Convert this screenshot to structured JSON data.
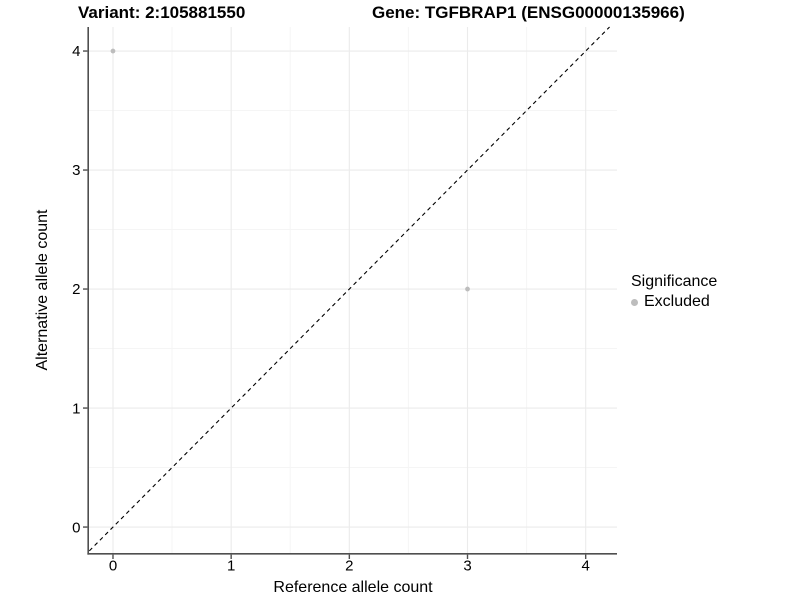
{
  "chart_data": {
    "type": "scatter",
    "title_left": "Variant: 2:105881550",
    "title_right": "Gene: TGFBRAP1 (ENSG00000135966)",
    "xlabel": "Reference allele count",
    "ylabel": "Alternative allele count",
    "x_ticks": [
      0,
      1,
      2,
      3,
      4
    ],
    "y_ticks": [
      0,
      1,
      2,
      3,
      4
    ],
    "x_minor": [
      0.5,
      1.5,
      2.5,
      3.5
    ],
    "y_minor": [
      0.5,
      1.5,
      2.5,
      3.5
    ],
    "xlim": [
      -0.203,
      4.265
    ],
    "ylim": [
      -0.218,
      4.202
    ],
    "grid": "on",
    "identity_line": {
      "style": "dashed",
      "from": -0.2,
      "to": 4.202,
      "color": "#000000"
    },
    "series": [
      {
        "name": "Excluded",
        "color": "#bdbdbd",
        "points": [
          {
            "x": 0,
            "y": 4
          },
          {
            "x": 3,
            "y": 2
          }
        ]
      }
    ],
    "legend": {
      "title": "Significance",
      "position": "right",
      "items": [
        {
          "label": "Excluded",
          "color": "#bdbdbd"
        }
      ]
    },
    "colors": {
      "grid_major": "#ebebeb",
      "grid_minor": "#f5f5f5",
      "axis": "#4f4f4f",
      "background": "#ffffff"
    }
  }
}
